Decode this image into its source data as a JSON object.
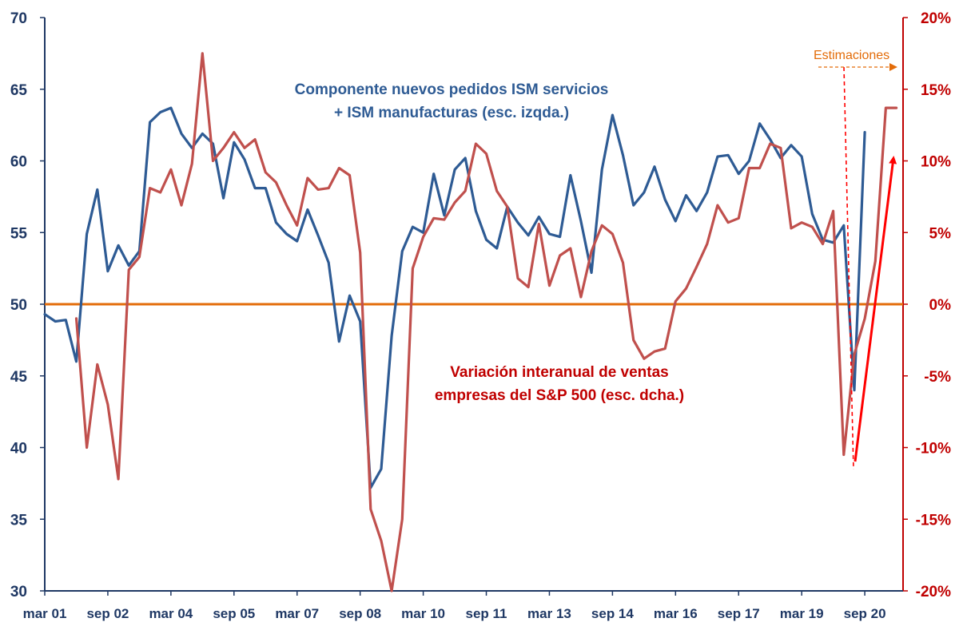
{
  "chart_data": {
    "type": "line",
    "x_ticks": [
      "mar 01",
      "sep 02",
      "mar 04",
      "sep 05",
      "mar 07",
      "sep 08",
      "mar 10",
      "sep 11",
      "mar 13",
      "sep 14",
      "mar 16",
      "sep 17",
      "mar 19",
      "sep 20"
    ],
    "x_tick_dates": [
      2001.17,
      2002.67,
      2004.17,
      2005.67,
      2007.17,
      2008.67,
      2010.17,
      2011.67,
      2013.17,
      2014.67,
      2016.17,
      2017.67,
      2019.17,
      2020.67
    ],
    "xlim": [
      2001.17,
      2021.58
    ],
    "left_axis": {
      "ylim": [
        30,
        70
      ],
      "ticks": [
        "30",
        "35",
        "40",
        "45",
        "50",
        "55",
        "60",
        "65",
        "70"
      ],
      "tick_values": [
        30,
        35,
        40,
        45,
        50,
        55,
        60,
        65,
        70
      ]
    },
    "right_axis": {
      "ylim": [
        -20,
        20
      ],
      "ticks": [
        "-20%",
        "-15%",
        "-10%",
        "-5%",
        "0%",
        "5%",
        "10%",
        "15%",
        "20%"
      ],
      "tick_values": [
        -20,
        -15,
        -10,
        -5,
        0,
        5,
        10,
        15,
        20
      ]
    },
    "annotations": {
      "ism_label_line1": "Componente nuevos pedidos ISM servicios",
      "ism_label_line2": "+ ISM manufacturas (esc. izqda.)",
      "sales_label_line1": "Variación interanual de ventas",
      "sales_label_line2": "empresas del S&P 500 (esc. dcha.)",
      "estimates_label": "Estimaciones"
    },
    "colors": {
      "ism": "#2e5b94",
      "sales": "#c0504d",
      "zero_line": "#e36c09",
      "left_axis": "#1f3864",
      "right_axis": "#c00000",
      "estimates": "#e36c09",
      "arrow": "#ff0000"
    },
    "series": [
      {
        "name": "Componente nuevos pedidos ISM servicios + ISM manufacturas (esc. izqda.)",
        "axis": "left",
        "x": [
          2001.17,
          2001.42,
          2001.67,
          2001.92,
          2002.17,
          2002.42,
          2002.67,
          2002.92,
          2003.17,
          2003.42,
          2003.67,
          2003.92,
          2004.17,
          2004.42,
          2004.67,
          2004.92,
          2005.17,
          2005.42,
          2005.67,
          2005.92,
          2006.17,
          2006.42,
          2006.67,
          2006.92,
          2007.17,
          2007.42,
          2007.67,
          2007.92,
          2008.17,
          2008.42,
          2008.67,
          2008.92,
          2009.17,
          2009.42,
          2009.67,
          2009.92,
          2010.17,
          2010.42,
          2010.67,
          2010.92,
          2011.17,
          2011.42,
          2011.67,
          2011.92,
          2012.17,
          2012.42,
          2012.67,
          2012.92,
          2013.17,
          2013.42,
          2013.67,
          2013.92,
          2014.17,
          2014.42,
          2014.67,
          2014.92,
          2015.17,
          2015.42,
          2015.67,
          2015.92,
          2016.17,
          2016.42,
          2016.67,
          2016.92,
          2017.17,
          2017.42,
          2017.67,
          2017.92,
          2018.17,
          2018.42,
          2018.67,
          2018.92,
          2019.17,
          2019.42,
          2019.67,
          2019.92,
          2020.17,
          2020.42,
          2020.67
        ],
        "y": [
          49.3,
          48.8,
          48.9,
          46.0,
          54.9,
          58.0,
          52.3,
          54.1,
          52.7,
          53.7,
          62.7,
          63.4,
          63.7,
          61.9,
          60.9,
          61.9,
          61.2,
          57.4,
          61.3,
          60.1,
          58.1,
          58.1,
          55.7,
          54.9,
          54.4,
          56.6,
          54.8,
          52.9,
          47.4,
          50.6,
          48.8,
          37.2,
          38.5,
          47.8,
          53.7,
          55.4,
          55.0,
          59.1,
          56.2,
          59.4,
          60.2,
          56.5,
          54.5,
          53.9,
          56.8,
          55.7,
          54.8,
          56.1,
          54.9,
          54.7,
          59.0,
          55.8,
          52.2,
          59.4,
          63.2,
          60.4,
          56.9,
          57.8,
          59.6,
          57.3,
          55.8,
          57.6,
          56.5,
          57.8,
          60.3,
          60.4,
          59.1,
          60.0,
          62.6,
          61.5,
          60.2,
          61.1,
          60.3,
          56.3,
          54.5,
          54.3,
          55.5,
          44.0,
          62.0
        ]
      },
      {
        "name": "Variación interanual de ventas empresas del S&P 500 (esc. dcha.)",
        "axis": "right",
        "x": [
          2001.92,
          2002.17,
          2002.42,
          2002.67,
          2002.92,
          2003.17,
          2003.42,
          2003.67,
          2003.92,
          2004.17,
          2004.42,
          2004.67,
          2004.92,
          2005.17,
          2005.42,
          2005.67,
          2005.92,
          2006.17,
          2006.42,
          2006.67,
          2006.92,
          2007.17,
          2007.42,
          2007.67,
          2007.92,
          2008.17,
          2008.42,
          2008.67,
          2008.92,
          2009.17,
          2009.42,
          2009.67,
          2009.92,
          2010.17,
          2010.42,
          2010.67,
          2010.92,
          2011.17,
          2011.42,
          2011.67,
          2011.92,
          2012.17,
          2012.42,
          2012.67,
          2012.92,
          2013.17,
          2013.42,
          2013.67,
          2013.92,
          2014.17,
          2014.42,
          2014.67,
          2014.92,
          2015.17,
          2015.42,
          2015.67,
          2015.92,
          2016.17,
          2016.42,
          2016.67,
          2016.92,
          2017.17,
          2017.42,
          2017.67,
          2017.92,
          2018.17,
          2018.42,
          2018.67,
          2018.92,
          2019.17,
          2019.42,
          2019.67,
          2019.92,
          2020.17,
          2020.42,
          2020.67,
          2020.92,
          2021.17,
          2021.42
        ],
        "y": [
          -1.0,
          -10.0,
          -4.2,
          -7.0,
          -12.2,
          2.4,
          3.3,
          8.1,
          7.8,
          9.4,
          6.9,
          9.8,
          17.5,
          10.0,
          10.9,
          12.0,
          10.9,
          11.5,
          9.2,
          8.5,
          6.9,
          5.5,
          8.8,
          8.0,
          8.1,
          9.5,
          9.0,
          3.6,
          -14.3,
          -16.5,
          -20.0,
          -15.0,
          2.5,
          4.7,
          6.0,
          5.9,
          7.1,
          7.9,
          11.2,
          10.5,
          7.9,
          6.8,
          1.8,
          1.2,
          5.6,
          1.3,
          3.4,
          3.9,
          0.5,
          3.7,
          5.5,
          4.9,
          2.9,
          -2.5,
          -3.8,
          -3.3,
          -3.1,
          0.2,
          1.1,
          2.6,
          4.2,
          6.9,
          5.7,
          6.0,
          9.5,
          9.5,
          11.2,
          10.9,
          5.3,
          5.7,
          5.4,
          4.2,
          6.5,
          -10.5,
          -3.5,
          -1.0,
          3.0,
          13.7,
          13.7
        ]
      }
    ]
  }
}
